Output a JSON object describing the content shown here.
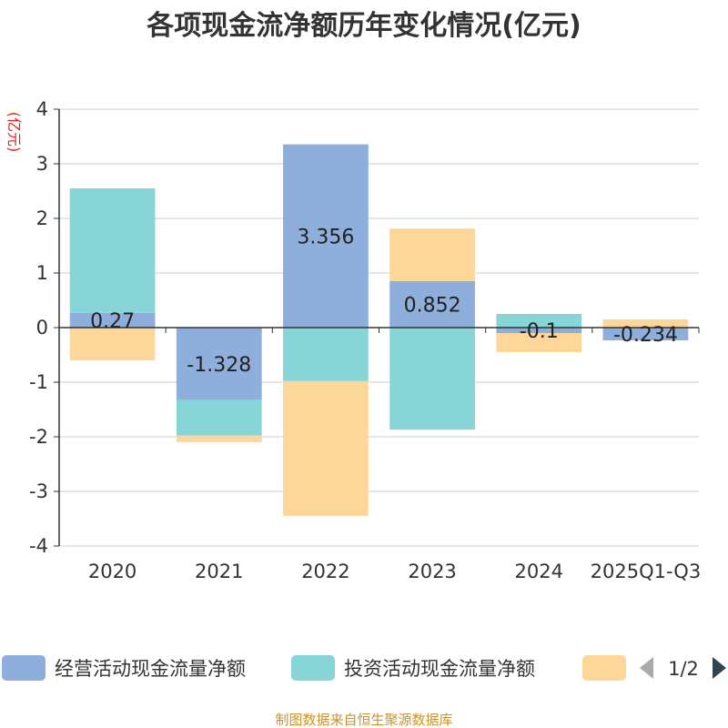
{
  "chart_data": {
    "type": "bar",
    "stacked": true,
    "title": "各项现金流净额历年变化情况(亿元)",
    "ylabel": "(亿元)",
    "ylim": [
      -4,
      4
    ],
    "yticks": [
      4,
      3,
      2,
      1,
      0,
      -1,
      -2,
      -3,
      -4
    ],
    "categories": [
      "2020",
      "2021",
      "2022",
      "2023",
      "2024",
      "2025Q1-Q3"
    ],
    "series": [
      {
        "name": "经营活动现金流量净额",
        "color": "#8eaedb",
        "values": [
          0.27,
          -1.328,
          3.356,
          0.852,
          -0.1,
          -0.234
        ],
        "labels": [
          "0.27",
          "-1.328",
          "3.356",
          "0.852",
          "-0.1",
          "-0.234"
        ],
        "show_labels": true
      },
      {
        "name": "投资活动现金流量净额",
        "color": "#87d5d6",
        "values": [
          2.28,
          -0.65,
          -0.98,
          -1.87,
          0.25,
          0.0
        ],
        "show_labels": false
      },
      {
        "name": "",
        "color": "#fdd799",
        "values": [
          -0.6,
          -0.12,
          -2.47,
          0.96,
          -0.35,
          0.15
        ],
        "show_labels": false
      }
    ],
    "legend": {
      "page": "1/2",
      "position": "bottom"
    },
    "grid": true
  },
  "source_text": "制图数据来自恒生聚源数据库"
}
